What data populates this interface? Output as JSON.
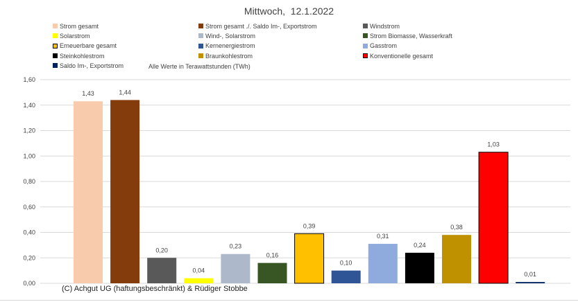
{
  "chart_data": {
    "type": "bar",
    "title": "Mittwoch,  12.1.2022",
    "units_note": "Alle Werte in Terawattstunden (TWh)",
    "credit": "(C) Achgut UG (haftungsbeschränkt) & Rüdiger Stobbe",
    "ylim": [
      0,
      1.6
    ],
    "yticks": [
      "0,00",
      "0,20",
      "0,40",
      "0,60",
      "0,80",
      "1,00",
      "1,20",
      "1,40",
      "1,60"
    ],
    "grid": true,
    "legend_position": "top",
    "categories": [
      "Strom gesamt",
      "Strom gesamt ./. Saldo Im-, Exportstrom",
      "Windstrom",
      "Solarstrom",
      "Wind-, Solarstrom",
      "Strom Biomasse, Wasserkraft",
      "Erneuerbare gesamt",
      "Kernenergiestrom",
      "Gasstrom",
      "Steinkohlestrom",
      "Braunkohlestrom",
      "Konventionelle gesamt",
      "Saldo Im-, Exportstrom"
    ],
    "values": [
      1.43,
      1.44,
      0.2,
      0.04,
      0.23,
      0.16,
      0.39,
      0.1,
      0.31,
      0.24,
      0.38,
      1.03,
      0.01
    ],
    "value_labels": [
      "1,43",
      "1,44",
      "0,20",
      "0,04",
      "0,23",
      "0,16",
      "0,39",
      "0,10",
      "0,31",
      "0,24",
      "0,38",
      "1,03",
      "0,01"
    ],
    "colors": [
      "#f8cbad",
      "#843c0c",
      "#595959",
      "#ffff00",
      "#adb9ca",
      "#375623",
      "#ffc000",
      "#2f5597",
      "#8faadc",
      "#000000",
      "#bf9000",
      "#ff0000",
      "#002060"
    ],
    "legend": [
      {
        "label": "Strom gesamt",
        "color": "#f8cbad"
      },
      {
        "label": "Strom gesamt ./. Saldo Im-, Exportstrom",
        "color": "#843c0c"
      },
      {
        "label": "Windstrom",
        "color": "#595959"
      },
      {
        "label": "Solarstrom",
        "color": "#ffff00"
      },
      {
        "label": "Wind-, Solarstrom",
        "color": "#adb9ca"
      },
      {
        "label": "Strom Biomasse, Wasserkraft",
        "color": "#375623"
      },
      {
        "label": "Erneuerbare gesamt",
        "color": "#ffc000"
      },
      {
        "label": "Kernenergiestrom",
        "color": "#2f5597"
      },
      {
        "label": "Gasstrom",
        "color": "#8faadc"
      },
      {
        "label": "Steinkohlestrom",
        "color": "#000000"
      },
      {
        "label": "Braunkohlestrom",
        "color": "#bf9000"
      },
      {
        "label": "Konventionelle gesamt",
        "color": "#ff0000"
      },
      {
        "label": "Saldo Im-, Exportstrom",
        "color": "#002060"
      }
    ]
  }
}
